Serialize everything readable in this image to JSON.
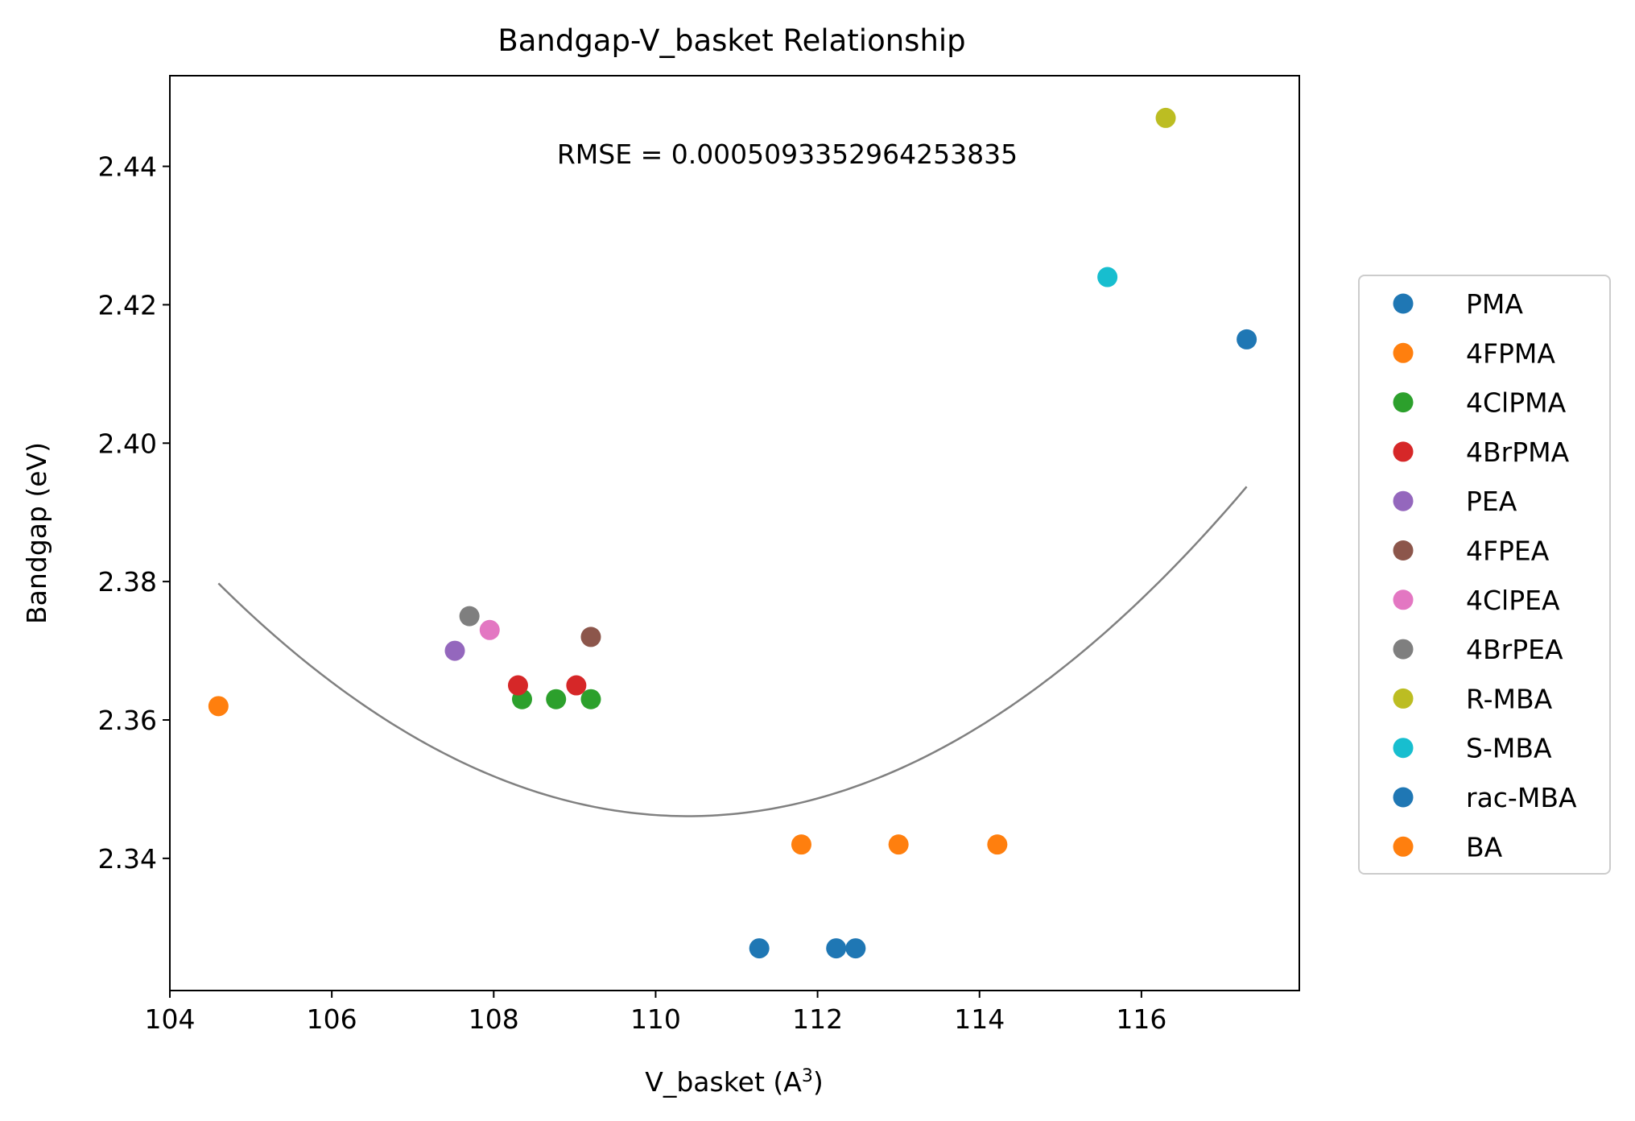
{
  "chart_data": {
    "type": "scatter",
    "title": "Bandgap-V_basket Relationship",
    "xlabel": "V_basket (A",
    "xlabel_superscript": "3",
    "xlabel_suffix": ")",
    "ylabel": "Bandgap (eV)",
    "annotation": "RMSE = 0.0005093352964253835",
    "xlim": [
      104.0,
      117.95
    ],
    "ylim": [
      2.3209,
      2.4531
    ],
    "xticks": [
      104,
      106,
      108,
      110,
      112,
      114,
      116
    ],
    "yticks": [
      2.34,
      2.36,
      2.38,
      2.4,
      2.42,
      2.44
    ],
    "xtick_labels": [
      "104",
      "106",
      "108",
      "110",
      "112",
      "114",
      "116"
    ],
    "ytick_labels": [
      "2.34",
      "2.36",
      "2.38",
      "2.40",
      "2.42",
      "2.44"
    ],
    "grid": false,
    "legend_position": "outside-right",
    "fit_curve": {
      "type": "quadratic",
      "color": "#808080",
      "x_range": [
        104.6,
        117.3
      ],
      "vertex": [
        110.4,
        2.3461
      ],
      "coefficient": 0.001
    },
    "series": [
      {
        "name": "PMA",
        "color": "#1f77b4",
        "x": [
          117.3
        ],
        "y": [
          2.415
        ]
      },
      {
        "name": "4FPMA",
        "color": "#ff7f0e",
        "x": [
          104.6
        ],
        "y": [
          2.362
        ]
      },
      {
        "name": "4ClPMA",
        "color": "#2ca02c",
        "x": [
          108.35,
          108.77,
          109.2
        ],
        "y": [
          2.363,
          2.363,
          2.363
        ]
      },
      {
        "name": "4BrPMA",
        "color": "#d62728",
        "x": [
          108.3,
          109.02
        ],
        "y": [
          2.365,
          2.365
        ]
      },
      {
        "name": "PEA",
        "color": "#9467bd",
        "x": [
          107.52
        ],
        "y": [
          2.37
        ]
      },
      {
        "name": "4FPEA",
        "color": "#8c564b",
        "x": [
          109.2
        ],
        "y": [
          2.372
        ]
      },
      {
        "name": "4ClPEA",
        "color": "#e377c2",
        "x": [
          107.95
        ],
        "y": [
          2.373
        ]
      },
      {
        "name": "4BrPEA",
        "color": "#7f7f7f",
        "x": [
          107.7
        ],
        "y": [
          2.375
        ]
      },
      {
        "name": "R-MBA",
        "color": "#bcbd22",
        "x": [
          116.3
        ],
        "y": [
          2.447
        ]
      },
      {
        "name": "S-MBA",
        "color": "#17becf",
        "x": [
          115.58
        ],
        "y": [
          2.424
        ]
      },
      {
        "name": "rac-MBA",
        "color": "#1f77b4",
        "x": [
          111.28,
          112.23,
          112.47
        ],
        "y": [
          2.327,
          2.327,
          2.327
        ]
      },
      {
        "name": "BA",
        "color": "#ff7f0e",
        "x": [
          111.8,
          113.0,
          114.22
        ],
        "y": [
          2.342,
          2.342,
          2.342
        ]
      }
    ]
  }
}
